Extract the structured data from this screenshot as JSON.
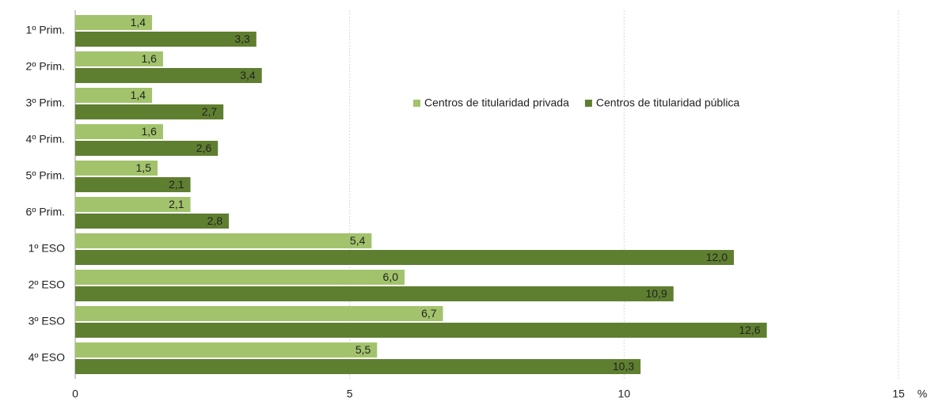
{
  "chart_data": {
    "type": "barh",
    "categories": [
      "1º Prim.",
      "2º Prim.",
      "3º Prim.",
      "4º Prim.",
      "5º Prim.",
      "6º Prim.",
      "1º ESO",
      "2º ESO",
      "3º ESO",
      "4º ESO"
    ],
    "series": [
      {
        "name": "Centros de titularidad privada",
        "color": "#a2c36b",
        "values": [
          1.4,
          1.6,
          1.4,
          1.6,
          1.5,
          2.1,
          5.4,
          6.0,
          6.7,
          5.5
        ],
        "value_labels": [
          "1,4",
          "1,6",
          "1,4",
          "1,6",
          "1,5",
          "2,1",
          "5,4",
          "6,0",
          "6,7",
          "5,5"
        ]
      },
      {
        "name": "Centros de titularidad pública",
        "color": "#5f7f30",
        "values": [
          3.3,
          3.4,
          2.7,
          2.6,
          2.1,
          2.8,
          12.0,
          10.9,
          12.6,
          10.3
        ],
        "value_labels": [
          "3,3",
          "3,4",
          "2,7",
          "2,6",
          "2,1",
          "2,8",
          "12,0",
          "10,9",
          "12,6",
          "10,3"
        ]
      }
    ],
    "xlabel": "%",
    "xlim": [
      0,
      15
    ],
    "xticks": [
      0,
      5,
      10,
      15
    ],
    "grid": true,
    "legend": "upper center"
  }
}
